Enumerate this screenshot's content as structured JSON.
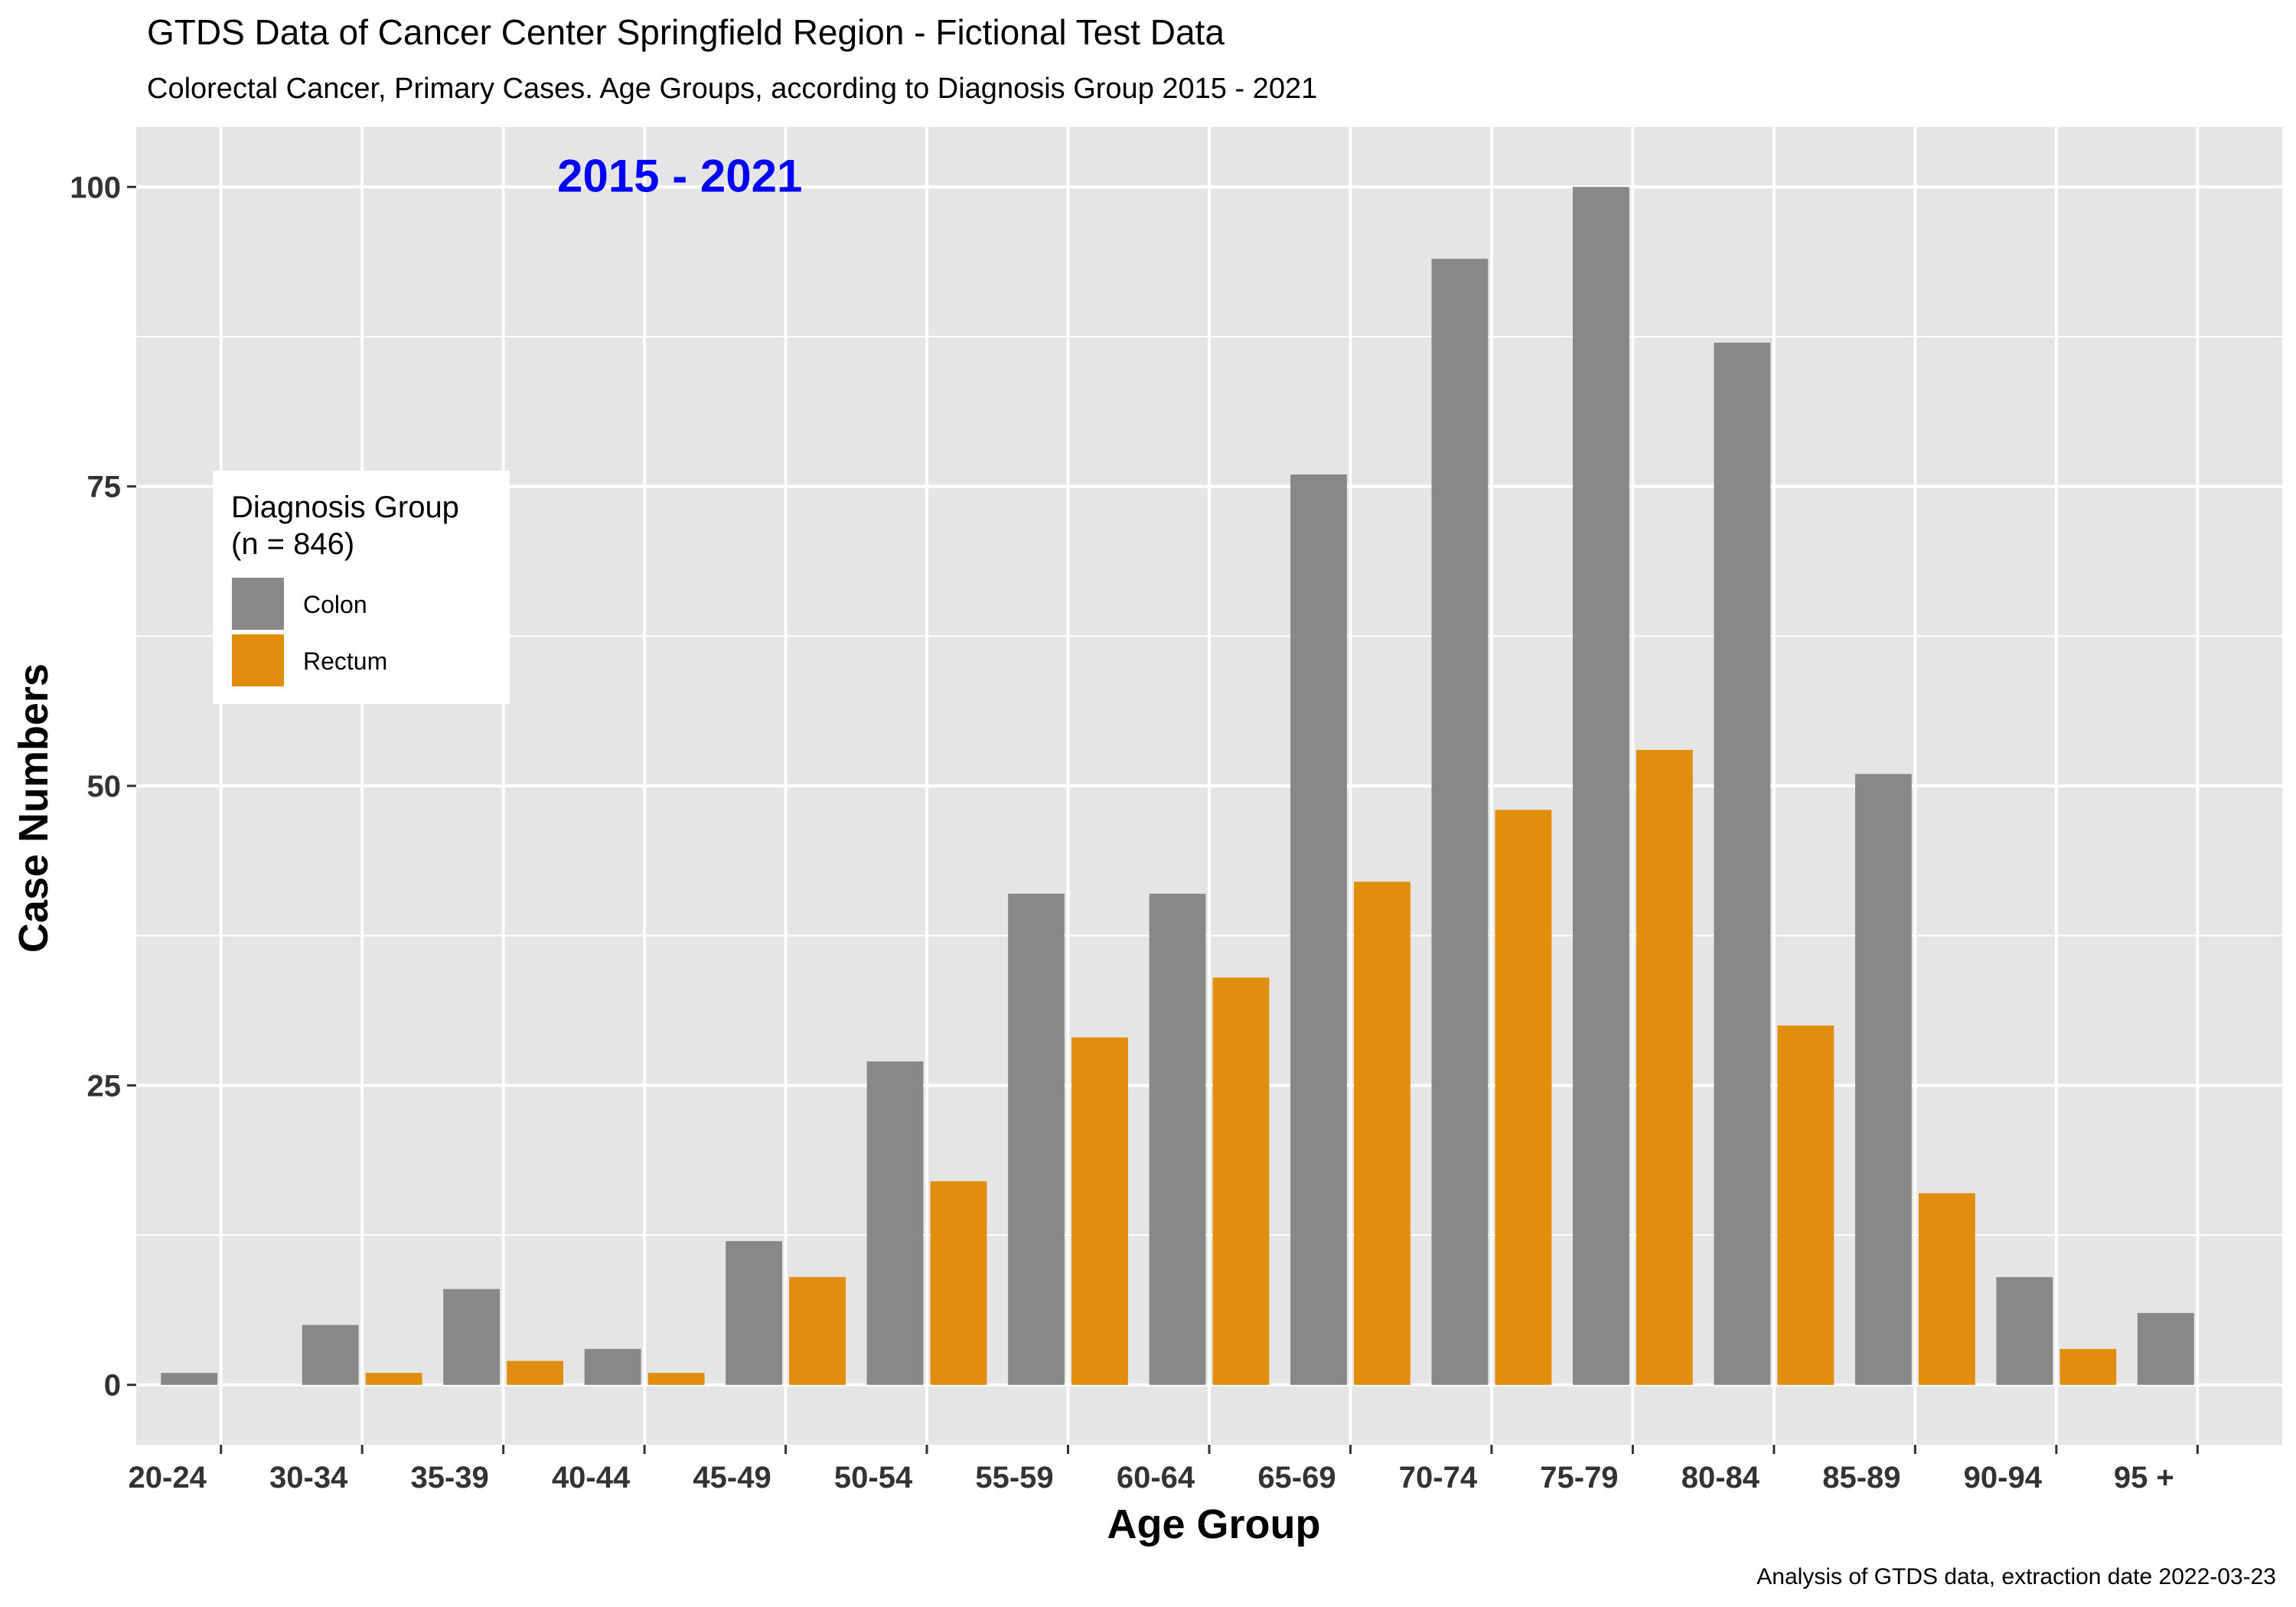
{
  "title": "GTDS Data of Cancer Center Springfield Region - Fictional Test Data",
  "subtitle": "Colorectal Cancer, Primary Cases. Age Groups, according to Diagnosis Group  2015 - 2021",
  "caption": "Analysis of GTDS data, extraction date  2022-03-23",
  "annotation": {
    "text": "2015 - 2021",
    "color": "#0000FF",
    "anchor_x": "40-44",
    "anchor_y": 101
  },
  "legend": {
    "title_line1": "Diagnosis Group",
    "title_line2": "(n = 846)",
    "placement": "left, inside plot",
    "items": [
      {
        "label": "Colon",
        "color": "#888888"
      },
      {
        "label": "Rectum",
        "color": "#E08E0B"
      }
    ]
  },
  "chart_data": {
    "type": "bar",
    "title": "GTDS Data of Cancer Center Springfield Region - Fictional Test Data",
    "subtitle": "Colorectal Cancer, Primary Cases. Age Groups, according to Diagnosis Group  2015 - 2021",
    "xlabel": "Age Group",
    "ylabel": "Case Numbers",
    "categories": [
      "20-24",
      "30-34",
      "35-39",
      "40-44",
      "45-49",
      "50-54",
      "55-59",
      "60-64",
      "65-69",
      "70-74",
      "75-79",
      "80-84",
      "85-89",
      "90-94",
      "95 +"
    ],
    "series": [
      {
        "name": "Colon",
        "color": "#888888",
        "values": [
          1,
          5,
          8,
          3,
          12,
          27,
          41,
          41,
          76,
          94,
          100,
          87,
          51,
          9,
          6
        ]
      },
      {
        "name": "Rectum",
        "color": "#E08E0B",
        "values": [
          0,
          1,
          2,
          1,
          9,
          17,
          29,
          34,
          42,
          48,
          53,
          30,
          16,
          3,
          0
        ]
      }
    ],
    "ylim": [
      -5,
      105
    ],
    "yticks": [
      0,
      25,
      50,
      75,
      100
    ],
    "grid": true,
    "panel_background": "#E5E5E5",
    "grid_color": "#FFFFFF"
  }
}
